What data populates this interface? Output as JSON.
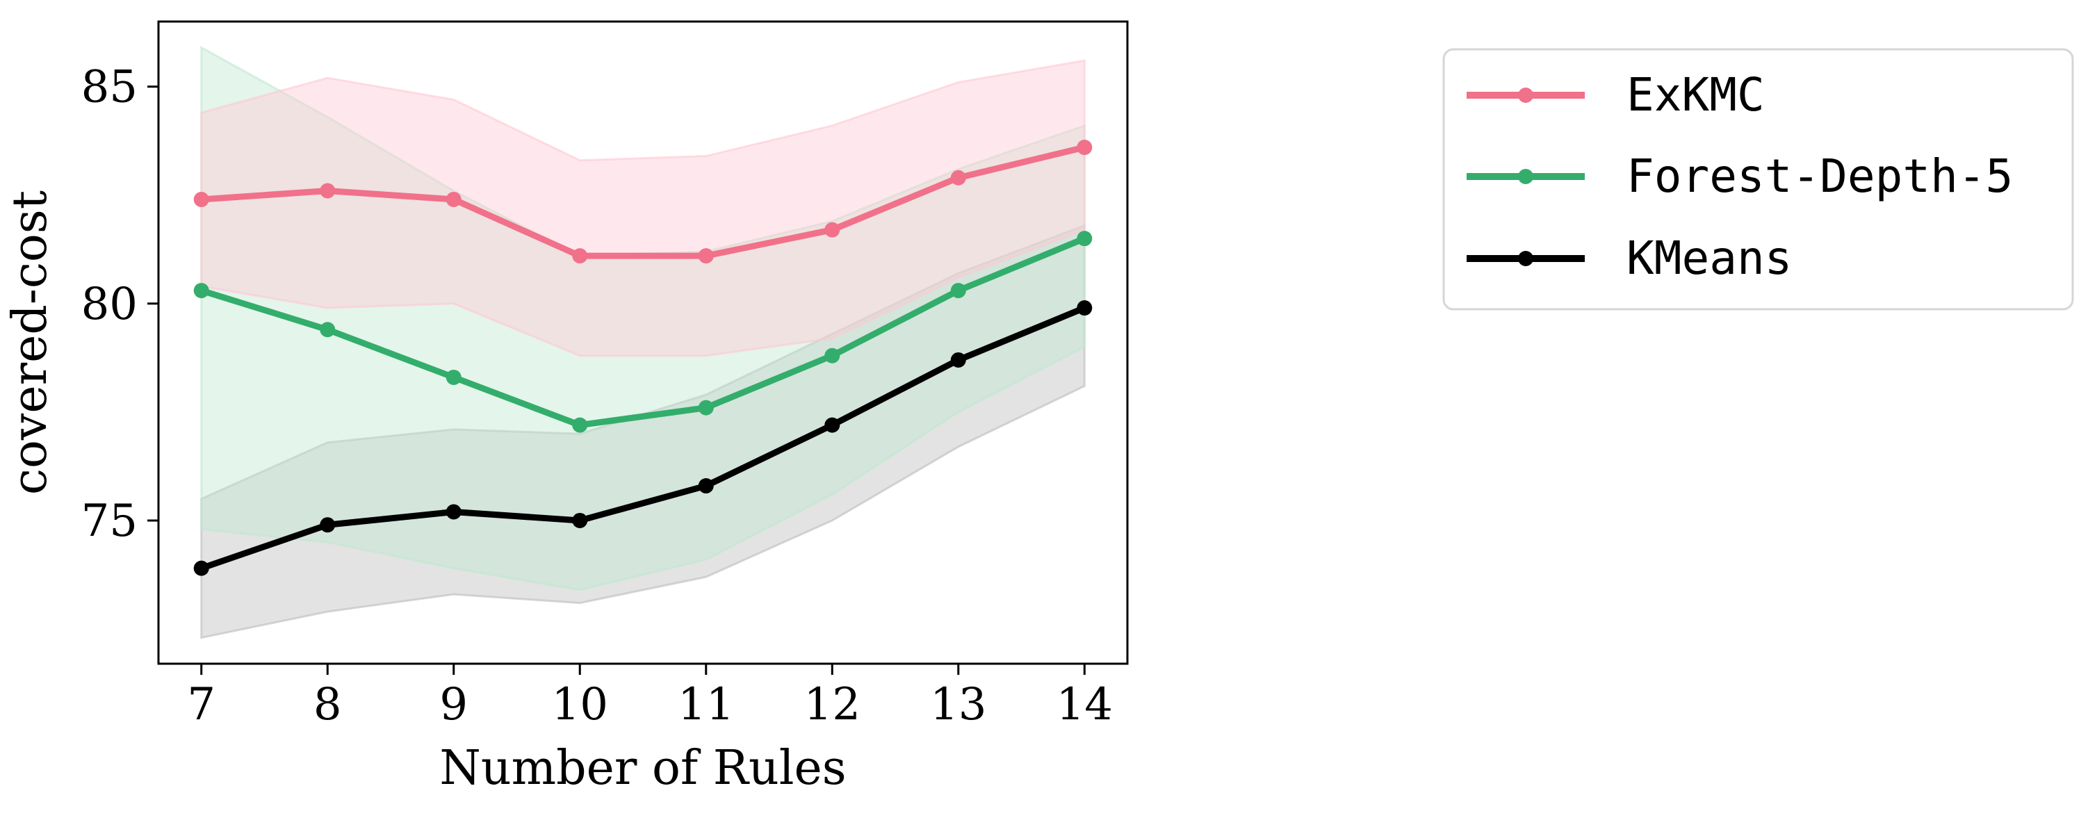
{
  "chart_data": {
    "type": "line",
    "xlabel": "Number of Rules",
    "ylabel": "covered-cost",
    "x": [
      7,
      8,
      9,
      10,
      11,
      12,
      13,
      14
    ],
    "xticks": [
      7,
      8,
      9,
      10,
      11,
      12,
      13,
      14
    ],
    "yticks": [
      75,
      80,
      85
    ],
    "xlim": [
      6.66,
      14.34
    ],
    "ylim": [
      71.7,
      86.5
    ],
    "grid": false,
    "legend_position": "outside-right",
    "series": [
      {
        "name": "ExKMC",
        "color": "#f07189",
        "band_color": "#ffc8d4",
        "values": [
          82.4,
          82.6,
          82.4,
          81.1,
          81.1,
          81.7,
          82.9,
          83.6
        ],
        "upper": [
          84.4,
          85.2,
          84.7,
          83.3,
          83.4,
          84.1,
          85.1,
          85.6
        ],
        "lower": [
          80.4,
          79.9,
          80.0,
          78.8,
          78.8,
          79.2,
          80.6,
          81.7
        ]
      },
      {
        "name": "Forest-Depth-5",
        "color": "#33ad6b",
        "band_color": "#bfe8cf",
        "values": [
          80.3,
          79.4,
          78.3,
          77.2,
          77.6,
          78.8,
          80.3,
          81.5
        ],
        "upper": [
          85.9,
          84.3,
          82.6,
          81.1,
          81.2,
          81.9,
          83.1,
          84.1
        ],
        "lower": [
          74.8,
          74.5,
          73.9,
          73.4,
          74.1,
          75.6,
          77.5,
          79.0
        ]
      },
      {
        "name": "KMeans",
        "color": "#000000",
        "band_color": "#bdbdbd",
        "values": [
          73.9,
          74.9,
          75.2,
          75.0,
          75.8,
          77.2,
          78.7,
          79.9
        ],
        "upper": [
          75.5,
          76.8,
          77.1,
          77.0,
          77.9,
          79.3,
          80.7,
          81.8
        ],
        "lower": [
          72.3,
          72.9,
          73.3,
          73.1,
          73.7,
          75.0,
          76.7,
          78.1
        ]
      }
    ]
  }
}
